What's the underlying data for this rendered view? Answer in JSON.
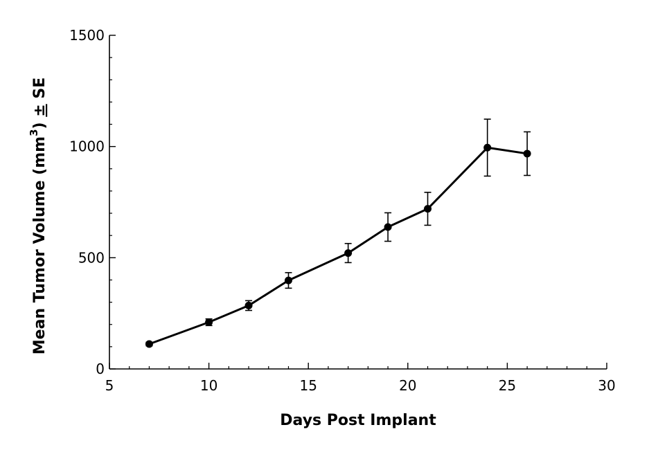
{
  "chart_data": {
    "type": "line",
    "title": "",
    "xlabel": "Days Post Implant",
    "ylabel": {
      "prefix": "Mean Tumor Volume (mm",
      "superscript": "3",
      "suffix": ") ",
      "pm_symbol": "±",
      "se": " SE"
    },
    "xlim": [
      5,
      30
    ],
    "ylim": [
      0,
      1500
    ],
    "x_ticks": [
      5,
      10,
      15,
      20,
      25,
      30
    ],
    "x_tick_labels": [
      "5",
      "10",
      "15",
      "20",
      "25",
      "30"
    ],
    "x_minor_step": 1,
    "y_ticks": [
      0,
      500,
      1000,
      1500
    ],
    "y_tick_labels": [
      "0",
      "500",
      "1000",
      "1500"
    ],
    "y_minor_step": 100,
    "grid": false,
    "legend": "none",
    "series": [
      {
        "color": "#000000",
        "marker": "circle",
        "points": [
          {
            "x": 7,
            "y": 112,
            "err": 8
          },
          {
            "x": 10,
            "y": 210,
            "err": 15
          },
          {
            "x": 12,
            "y": 285,
            "err": 22
          },
          {
            "x": 14,
            "y": 398,
            "err": 35
          },
          {
            "x": 17,
            "y": 521,
            "err": 43
          },
          {
            "x": 19,
            "y": 638,
            "err": 64
          },
          {
            "x": 21,
            "y": 720,
            "err": 74
          },
          {
            "x": 24,
            "y": 995,
            "err": 128
          },
          {
            "x": 26,
            "y": 968,
            "err": 98
          }
        ]
      }
    ]
  }
}
